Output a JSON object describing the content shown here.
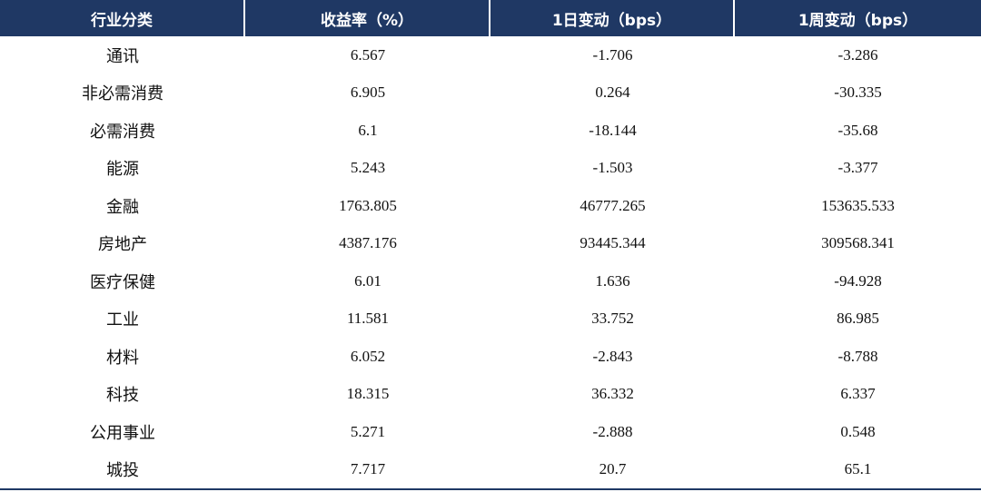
{
  "table": {
    "headers": [
      "行业分类",
      "收益率（%）",
      "1日变动（bps）",
      "1周变动（bps）"
    ],
    "rows": [
      [
        "通讯",
        "6.567",
        "-1.706",
        "-3.286"
      ],
      [
        "非必需消费",
        "6.905",
        "0.264",
        "-30.335"
      ],
      [
        "必需消费",
        "6.1",
        "-18.144",
        "-35.68"
      ],
      [
        "能源",
        "5.243",
        "-1.503",
        "-3.377"
      ],
      [
        "金融",
        "1763.805",
        "46777.265",
        "153635.533"
      ],
      [
        "房地产",
        "4387.176",
        "93445.344",
        "309568.341"
      ],
      [
        "医疗保健",
        "6.01",
        "1.636",
        "-94.928"
      ],
      [
        "工业",
        "11.581",
        "33.752",
        "86.985"
      ],
      [
        "材料",
        "6.052",
        "-2.843",
        "-8.788"
      ],
      [
        "科技",
        "18.315",
        "36.332",
        "6.337"
      ],
      [
        "公用事业",
        "5.271",
        "-2.888",
        "0.548"
      ],
      [
        "城投",
        "7.717",
        "20.7",
        "65.1"
      ]
    ]
  },
  "colors": {
    "header_bg": "#1f3864",
    "header_text": "#ffffff",
    "body_text": "#111111",
    "rule": "#1f3864"
  }
}
